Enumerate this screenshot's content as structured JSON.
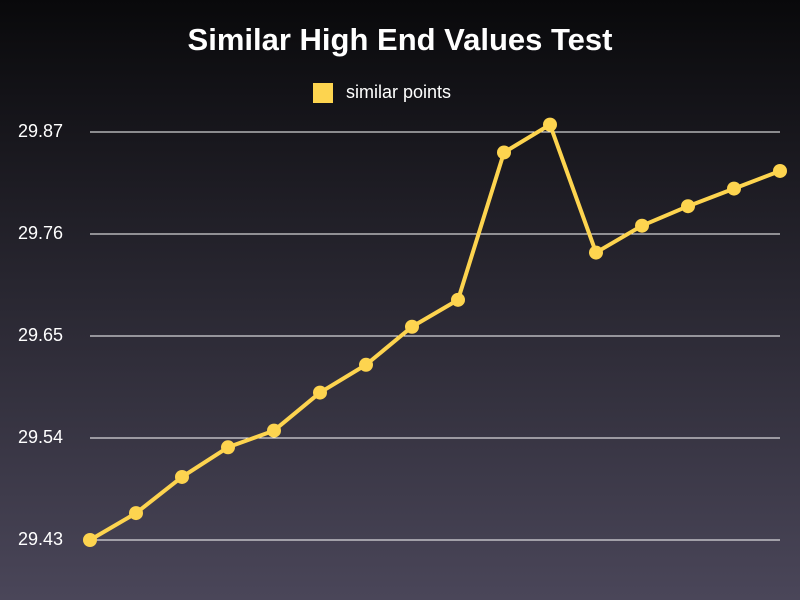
{
  "chart_data": {
    "type": "line",
    "title": "Similar High End Values Test",
    "categories": [
      null,
      null,
      null,
      null,
      null,
      null,
      null,
      null,
      null,
      null,
      null,
      null,
      null,
      null,
      null,
      null
    ],
    "series": [
      {
        "name": "similar points",
        "color": "#fdd44f",
        "values": [
          29.43,
          29.459,
          29.498,
          29.53,
          29.548,
          29.589,
          29.619,
          29.66,
          29.689,
          29.848,
          29.878,
          29.74,
          29.769,
          29.79,
          29.809,
          29.828
        ]
      }
    ],
    "ylim": [
      29.43,
      29.89
    ],
    "yticks": [
      29.43,
      29.54,
      29.65,
      29.76,
      29.87
    ],
    "grid": true,
    "legend": "top"
  }
}
